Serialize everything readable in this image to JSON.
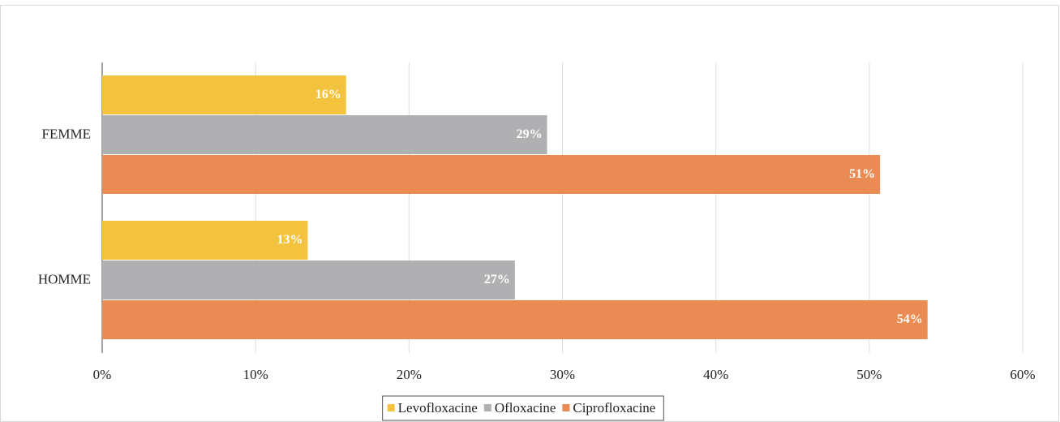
{
  "chart_data": {
    "type": "hbar",
    "categories": [
      "FEMME",
      "HOMME"
    ],
    "series": [
      {
        "name": "Levofloxacine",
        "color": "#f4c33d",
        "values": [
          15.9,
          13.4
        ],
        "value_labels": [
          "16%",
          "13%"
        ]
      },
      {
        "name": "Ofloxacine",
        "color": "#b0b0b2",
        "values": [
          29,
          26.9
        ],
        "value_labels": [
          "29%",
          "27%"
        ]
      },
      {
        "name": "Ciprofloxacine",
        "color": "#e98b52",
        "values": [
          50.7,
          53.8
        ],
        "value_labels": [
          "51%",
          "54%"
        ]
      }
    ],
    "xlim": [
      0,
      60
    ],
    "xticks": [
      {
        "value": 0,
        "label": "0%"
      },
      {
        "value": 10,
        "label": "10%"
      },
      {
        "value": 20,
        "label": "20%"
      },
      {
        "value": 30,
        "label": "30%"
      },
      {
        "value": 40,
        "label": "40%"
      },
      {
        "value": 50,
        "label": "50%"
      },
      {
        "value": 60,
        "label": "60%"
      }
    ],
    "grid": true,
    "legend": "bottom"
  }
}
